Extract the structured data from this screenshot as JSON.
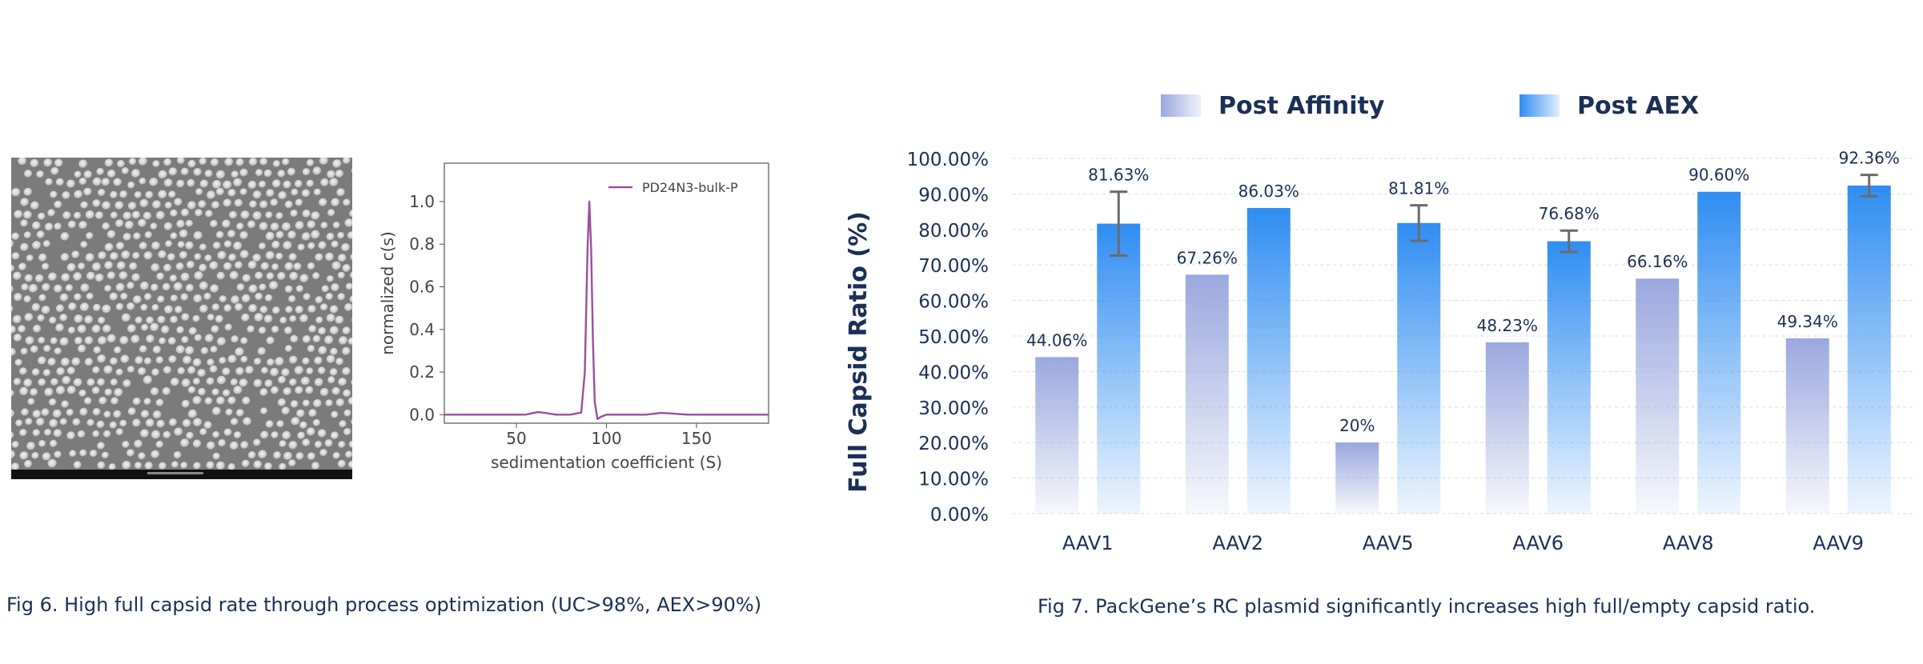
{
  "captions": {
    "fig6": "Fig 6. High full capsid rate through process optimization (UC>98%, AEX>90%)",
    "fig7": "Fig 7. PackGene’s RC plasmid significantly increases high full/empty capsid ratio."
  },
  "micrograph": {
    "description_icon": "electron-micrograph-image"
  },
  "chart_data": [
    {
      "type": "line",
      "title": "",
      "xlabel": "sedimentation coefficient (S)",
      "ylabel": "normalized c(s)",
      "xlim": [
        10,
        190
      ],
      "ylim": [
        -0.04,
        1.18
      ],
      "xticks": [
        50,
        100,
        150
      ],
      "yticks": [
        0.0,
        0.2,
        0.4,
        0.6,
        0.8,
        1.0
      ],
      "ytick_labels": [
        "0.0",
        "0.2",
        "0.4",
        "0.6",
        "0.8",
        "1.0"
      ],
      "grid": false,
      "legend": "top-right",
      "series": [
        {
          "name": "PD24N3-bulk-P",
          "color": "#9b4f9b",
          "x": [
            10,
            40,
            55,
            62,
            66,
            72,
            80,
            86,
            88,
            89.5,
            90.5,
            91.5,
            92.5,
            93.5,
            95,
            97,
            100,
            110,
            122,
            130,
            135,
            145,
            160,
            190
          ],
          "y": [
            0.0,
            0.0,
            0.0,
            0.012,
            0.008,
            0.0,
            0.0,
            0.01,
            0.2,
            0.78,
            1.0,
            0.78,
            0.35,
            0.06,
            -0.02,
            -0.01,
            0.0,
            0.0,
            0.0,
            0.008,
            0.006,
            0.0,
            0.0,
            0.0
          ]
        }
      ]
    },
    {
      "type": "bar",
      "title": "",
      "xlabel": "",
      "ylabel": "Full Capsid Ratio (%)",
      "ylim": [
        0,
        100
      ],
      "yticks": [
        0,
        10,
        20,
        30,
        40,
        50,
        60,
        70,
        80,
        90,
        100
      ],
      "ytick_labels": [
        "0.00%",
        "10.00%",
        "20.00%",
        "30.00%",
        "40.00%",
        "50.00%",
        "60.00%",
        "70.00%",
        "80.00%",
        "90.00%",
        "100.00%"
      ],
      "grid": true,
      "legend": "top",
      "categories": [
        "AAV1",
        "AAV2",
        "AAV5",
        "AAV6",
        "AAV8",
        "AAV9"
      ],
      "series": [
        {
          "name": "Post Affinity",
          "color": "#9aa8de",
          "values": [
            44.06,
            67.26,
            20,
            48.23,
            66.16,
            49.34
          ],
          "labels": [
            "44.06%",
            "67.26%",
            "20%",
            "48.23%",
            "66.16%",
            "49.34%"
          ],
          "error": [
            null,
            null,
            null,
            null,
            null,
            null
          ]
        },
        {
          "name": "Post AEX",
          "color": "#2f8df2",
          "values": [
            81.63,
            86.03,
            81.81,
            76.68,
            90.6,
            92.36
          ],
          "labels": [
            "81.63%",
            "86.03%",
            "81.81%",
            "76.68%",
            "90.60%",
            "92.36%"
          ],
          "error": [
            9,
            null,
            5,
            3,
            null,
            3
          ]
        }
      ]
    }
  ]
}
